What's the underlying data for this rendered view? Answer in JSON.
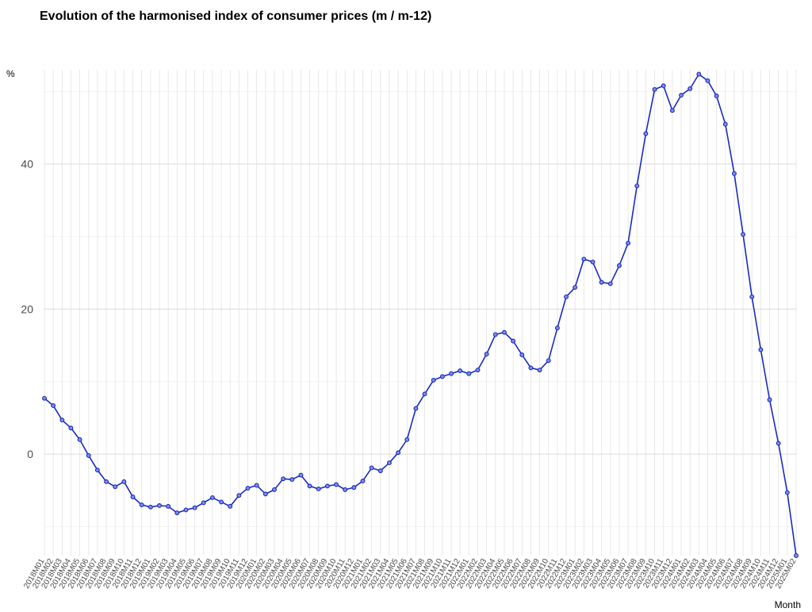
{
  "chart_data": {
    "type": "line",
    "title": "Evolution of the harmonised index of consumer prices (m / m-12)",
    "xlabel": "Month",
    "ylabel": "%",
    "ylim": [
      -14,
      53
    ],
    "yticks": [
      0,
      20,
      40
    ],
    "grid": true,
    "legend": "none",
    "categories": [
      "2018M01",
      "2018M02",
      "2018M03",
      "2018M04",
      "2018M05",
      "2018M06",
      "2018M07",
      "2018M08",
      "2018M09",
      "2018M10",
      "2018M11",
      "2018M12",
      "2019M01",
      "2019M02",
      "2019M03",
      "2019M04",
      "2019M05",
      "2019M06",
      "2019M07",
      "2019M08",
      "2019M09",
      "2019M10",
      "2019M11",
      "2019M12",
      "2020M01",
      "2020M02",
      "2020M03",
      "2020M04",
      "2020M05",
      "2020M06",
      "2020M07",
      "2020M08",
      "2020M09",
      "2020M10",
      "2020M11",
      "2020M12",
      "2021M01",
      "2021M02",
      "2021M03",
      "2021M04",
      "2021M05",
      "2021M06",
      "2021M07",
      "2021M08",
      "2021M09",
      "2021M10",
      "2021M11",
      "2021M12",
      "2022M01",
      "2022M02",
      "2022M03",
      "2022M04",
      "2022M05",
      "2022M06",
      "2022M07",
      "2022M08",
      "2022M09",
      "2022M10",
      "2022M11",
      "2022M12",
      "2023M01",
      "2023M02",
      "2023M03",
      "2023M04",
      "2023M05",
      "2023M06",
      "2023M07",
      "2023M08",
      "2023M09",
      "2023M10",
      "2023M11",
      "2023M12",
      "2024M01",
      "2024M02",
      "2024M03",
      "2024M04",
      "2024M05",
      "2024M06",
      "2024M07",
      "2024M08",
      "2024M09",
      "2024M10",
      "2024M11",
      "2024M12",
      "2025M01",
      "2025M02"
    ],
    "series": [
      {
        "values": [
          7.7,
          6.7,
          4.7,
          3.6,
          2.0,
          -0.2,
          -2.2,
          -3.8,
          -4.5,
          -3.8,
          -5.9,
          -7.0,
          -7.3,
          -7.1,
          -7.2,
          -8.1,
          -7.7,
          -7.4,
          -6.7,
          -6.0,
          -6.6,
          -7.2,
          -5.7,
          -4.7,
          -4.3,
          -5.5,
          -4.9,
          -3.4,
          -3.5,
          -2.9,
          -4.4,
          -4.8,
          -4.4,
          -4.2,
          -4.9,
          -4.6,
          -3.7,
          -1.9,
          -2.3,
          -1.2,
          0.2,
          2.0,
          6.3,
          8.3,
          10.2,
          10.7,
          11.1,
          11.5,
          11.1,
          11.6,
          13.8,
          16.5,
          16.8,
          15.6,
          13.7,
          11.9,
          11.6,
          12.9,
          17.4,
          21.7,
          23.0,
          26.9,
          26.5,
          23.7,
          23.5,
          26.0,
          29.1,
          37.0,
          44.2,
          50.3,
          50.8,
          47.4,
          49.5,
          50.4,
          52.4,
          51.5,
          49.4,
          45.5,
          38.7,
          30.3,
          21.7,
          14.4,
          7.5,
          1.5,
          -5.3,
          -14.0
        ],
        "color": "#1a2bc4"
      }
    ]
  }
}
